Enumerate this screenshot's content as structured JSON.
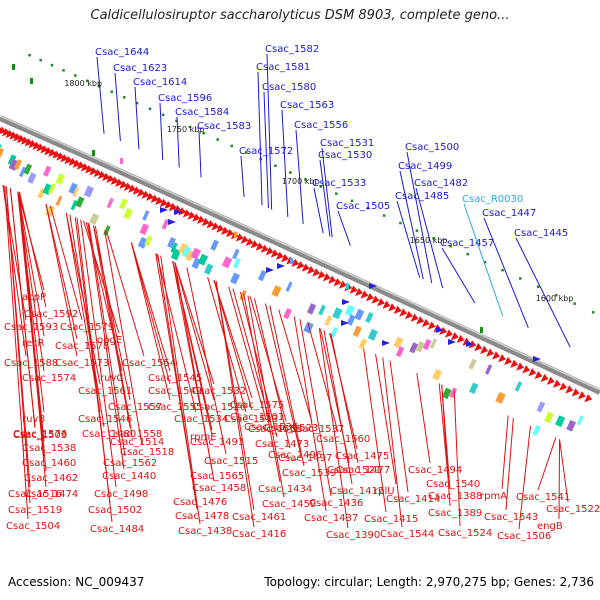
{
  "title": "Caldicellulosiruptor saccharolyticus DSM 8903, complete geno...",
  "footer": {
    "accession": "Accession: NC_009437",
    "topology": "Topology: circular; Length: 2,970,275 bp; Genes: 2,736"
  },
  "colors": {
    "blue_label": "#1a1ad0",
    "cyan_label": "#2aa8e0",
    "red_label": "#e01010",
    "backbone": "#8a8a8a",
    "green_feature": "#1a8a1a"
  },
  "kbp_marks": [
    "1800 kbp",
    "1750 kbp",
    "1700 kbp",
    "1650 kbp",
    "1600 kbp"
  ],
  "top_labels": [
    {
      "name": "Csac_1644",
      "color": "blue"
    },
    {
      "name": "Csac_1623",
      "color": "blue"
    },
    {
      "name": "Csac_1614",
      "color": "blue"
    },
    {
      "name": "Csac_1596",
      "color": "blue"
    },
    {
      "name": "Csac_1584",
      "color": "blue"
    },
    {
      "name": "Csac_1583",
      "color": "blue"
    },
    {
      "name": "Csac_1582",
      "color": "blue"
    },
    {
      "name": "Csac_1581",
      "color": "blue"
    },
    {
      "name": "Csac_1580",
      "color": "blue"
    },
    {
      "name": "Csac_1563",
      "color": "blue"
    },
    {
      "name": "Csac_1572",
      "color": "blue"
    },
    {
      "name": "Csac_1556",
      "color": "blue"
    },
    {
      "name": "Csac_1531",
      "color": "blue"
    },
    {
      "name": "Csac_1530",
      "color": "blue"
    },
    {
      "name": "Csac_1533",
      "color": "blue"
    },
    {
      "name": "Csac_1500",
      "color": "blue"
    },
    {
      "name": "Csac_1499",
      "color": "blue"
    },
    {
      "name": "Csac_1505",
      "color": "blue"
    },
    {
      "name": "Csac_1482",
      "color": "blue"
    },
    {
      "name": "Csac_1485",
      "color": "blue"
    },
    {
      "name": "Csac_R0030",
      "color": "cyan"
    },
    {
      "name": "Csac_1447",
      "color": "blue"
    },
    {
      "name": "Csac_1457",
      "color": "blue"
    },
    {
      "name": "Csac_1445",
      "color": "blue"
    }
  ],
  "bottom_labels": [
    "acpP",
    "Csac_1592",
    "Csac_1593",
    "Csac_1579",
    "recR",
    "Csac_1578",
    "obgE",
    "Csac_1588",
    "Csac_1573",
    "Csac_1554",
    "Csac_1574",
    "ruvC",
    "Csac_1545",
    "Csac_1561",
    "Csac_1549",
    "Csac_1532",
    "Csac_1557",
    "Csac_1555",
    "Csac_1526",
    "Csac_1575",
    "ruvB",
    "Csac_1546",
    "Csac_1534",
    "Csac_1513",
    "Csac_1576",
    "Csac_1558",
    "rpmE",
    "Csac_1501",
    "Csac_1536",
    "Csac_1523",
    "Csac_1503",
    "Csac_1480",
    "Csac_1559",
    "Csac_1537",
    "Csac_1514",
    "Csac_1491",
    "Csac_1473",
    "Csac_1560",
    "Csac_1538",
    "Csac_1518",
    "Csac_1496",
    "Csac_1475",
    "Csac_1460",
    "Csac_1562",
    "Csac_1515",
    "Csac_1497",
    "Csac_1477",
    "Csac_1462",
    "Csac_1440",
    "Csac_1565",
    "Csac_1539",
    "Csac_1521",
    "Csac_1494",
    "Csac_1474",
    "Csac_1458",
    "Csac_1434",
    "Csac_1412",
    "rplU",
    "Csac_1540",
    "Csac_1516",
    "Csac_1498",
    "Csac_1476",
    "Csac_1459",
    "Csac_1436",
    "Csac_1414",
    "Csac_1388",
    "rpmA",
    "Csac_1541",
    "Csac_1519",
    "Csac_1502",
    "Csac_1478",
    "Csac_1461",
    "Csac_1437",
    "Csac_1415",
    "Csac_1389",
    "Csac_1543",
    "Csac_1522",
    "Csac_1504",
    "Csac_1484",
    "Csac_1438",
    "Csac_1416",
    "Csac_1390",
    "Csac_1544",
    "Csac_1524",
    "Csac_1506",
    "engB"
  ]
}
